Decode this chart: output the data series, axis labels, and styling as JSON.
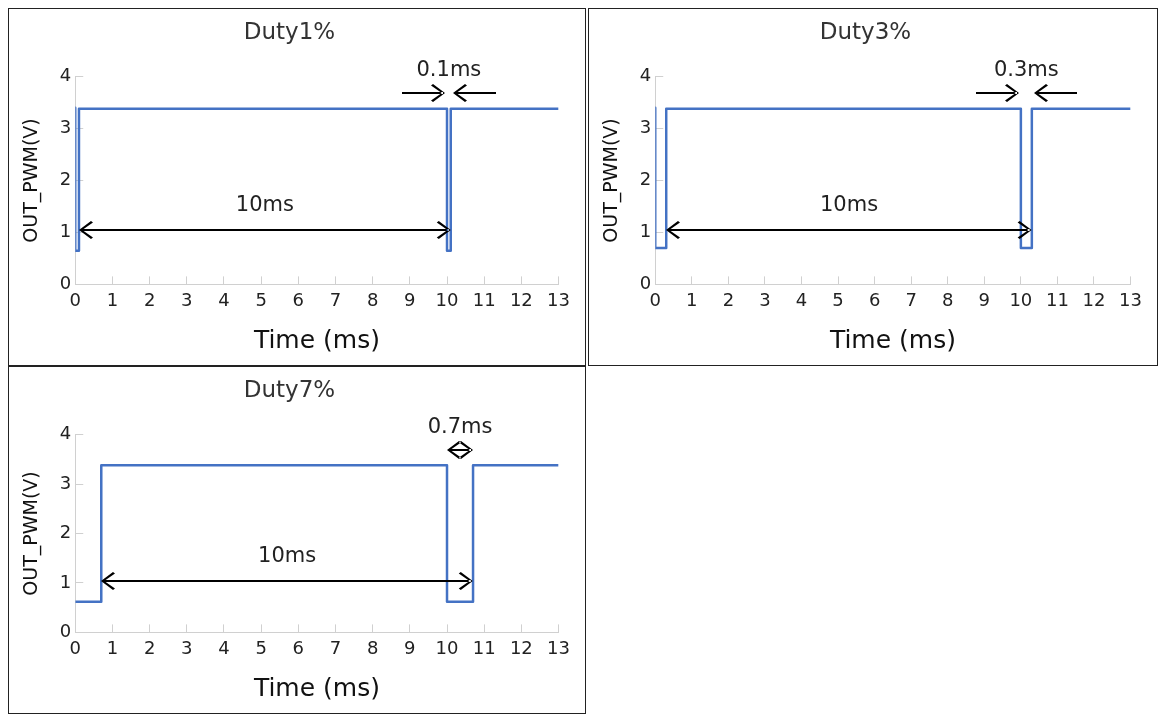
{
  "chart_data": [
    {
      "type": "line",
      "title": "Duty1%",
      "xlabel": "Time (ms)",
      "ylabel": "OUT_PWM(V)",
      "xlim": [
        0,
        13
      ],
      "ylim": [
        0,
        4
      ],
      "xticks": [
        0,
        1,
        2,
        3,
        4,
        5,
        6,
        7,
        8,
        9,
        10,
        11,
        12,
        13
      ],
      "yticks": [
        0,
        1,
        2,
        3,
        4
      ],
      "marker": "none",
      "series": [
        {
          "color": "#4472c4",
          "x": [
            0,
            0,
            0.1,
            0.1,
            10,
            10,
            10.1,
            10.1,
            13
          ],
          "values": [
            3.4,
            0.65,
            0.65,
            3.38,
            3.38,
            0.65,
            0.65,
            3.38,
            3.38
          ]
        }
      ],
      "annotations": [
        "10ms",
        "0.1ms"
      ]
    },
    {
      "type": "line",
      "title": "Duty3%",
      "xlabel": "Time (ms)",
      "ylabel": "OUT_PWM(V)",
      "xlim": [
        0,
        13
      ],
      "ylim": [
        0,
        4
      ],
      "xticks": [
        0,
        1,
        2,
        3,
        4,
        5,
        6,
        7,
        8,
        9,
        10,
        11,
        12,
        13
      ],
      "yticks": [
        0,
        1,
        2,
        3,
        4
      ],
      "marker": "none",
      "series": [
        {
          "color": "#4472c4",
          "x": [
            0,
            0,
            0.3,
            0.3,
            10,
            10,
            10.3,
            10.3,
            13
          ],
          "values": [
            3.4,
            0.7,
            0.7,
            3.38,
            3.38,
            0.7,
            0.7,
            3.38,
            3.38
          ]
        }
      ],
      "annotations": [
        "10ms",
        "0.3ms"
      ]
    },
    {
      "type": "line",
      "title": "Duty7%",
      "xlabel": "Time (ms)",
      "ylabel": "OUT_PWM(V)",
      "xlim": [
        0,
        13
      ],
      "ylim": [
        0,
        4
      ],
      "xticks": [
        0,
        1,
        2,
        3,
        4,
        5,
        6,
        7,
        8,
        9,
        10,
        11,
        12,
        13
      ],
      "yticks": [
        0,
        1,
        2,
        3,
        4
      ],
      "marker": "none",
      "series": [
        {
          "color": "#4472c4",
          "x": [
            0,
            0.7,
            0.7,
            10,
            10,
            10.7,
            10.7,
            13
          ],
          "values": [
            0.62,
            0.62,
            3.38,
            3.38,
            0.62,
            0.62,
            3.38,
            3.38
          ]
        }
      ],
      "annotations": [
        "10ms",
        "0.7ms"
      ]
    }
  ]
}
